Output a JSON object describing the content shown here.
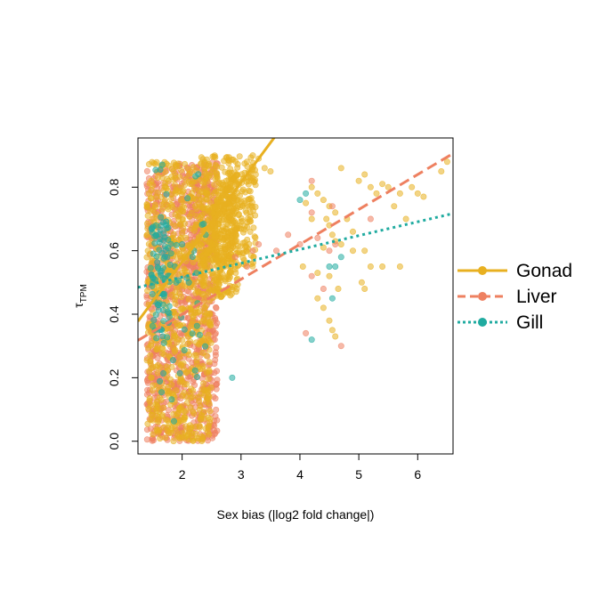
{
  "colors": {
    "gonad": "#E8B020",
    "liver": "#EE8060",
    "gill": "#20ABA0"
  },
  "chart_data": {
    "type": "scatter",
    "xlabel": "Sex bias (|log2 fold change|)",
    "ylabel_main": "τ",
    "ylabel_sub": "TPM",
    "xlim": [
      1.25,
      6.6
    ],
    "ylim": [
      -0.04,
      0.955
    ],
    "x_ticks": [
      2,
      3,
      4,
      5,
      6
    ],
    "y_ticks": [
      0.0,
      0.2,
      0.4,
      0.6,
      0.8
    ],
    "x_tick_labels": [
      "2",
      "3",
      "4",
      "5",
      "6"
    ],
    "y_tick_labels": [
      "0.0",
      "0.2",
      "0.4",
      "0.6",
      "0.8"
    ],
    "grid": false,
    "legend_position": "right",
    "series": [
      {
        "name": "Gonad",
        "color_key": "gonad",
        "line_style": "solid",
        "fit": {
          "intercept": 0.065,
          "slope": 0.25
        },
        "extra_points": [
          [
            3.1,
            0.88
          ],
          [
            3.2,
            0.9
          ],
          [
            3.3,
            0.89
          ],
          [
            3.4,
            0.86
          ],
          [
            3.5,
            0.85
          ],
          [
            3.25,
            0.84
          ],
          [
            4.1,
            0.75
          ],
          [
            4.2,
            0.8
          ],
          [
            4.3,
            0.78
          ],
          [
            4.4,
            0.76
          ],
          [
            4.5,
            0.74
          ],
          [
            4.6,
            0.72
          ],
          [
            4.2,
            0.7
          ],
          [
            4.45,
            0.7
          ],
          [
            4.5,
            0.68
          ],
          [
            4.55,
            0.65
          ],
          [
            4.6,
            0.63
          ],
          [
            4.7,
            0.62
          ],
          [
            4.4,
            0.61
          ],
          [
            4.8,
            0.7
          ],
          [
            4.9,
            0.66
          ],
          [
            5.0,
            0.82
          ],
          [
            5.1,
            0.84
          ],
          [
            5.2,
            0.8
          ],
          [
            5.3,
            0.78
          ],
          [
            5.4,
            0.81
          ],
          [
            5.5,
            0.8
          ],
          [
            5.6,
            0.74
          ],
          [
            5.7,
            0.78
          ],
          [
            5.8,
            0.7
          ],
          [
            5.9,
            0.8
          ],
          [
            6.0,
            0.78
          ],
          [
            6.1,
            0.77
          ],
          [
            6.4,
            0.85
          ],
          [
            6.5,
            0.88
          ],
          [
            4.7,
            0.86
          ],
          [
            4.5,
            0.38
          ],
          [
            4.55,
            0.35
          ],
          [
            4.6,
            0.33
          ],
          [
            4.4,
            0.42
          ],
          [
            4.3,
            0.45
          ],
          [
            4.65,
            0.48
          ],
          [
            4.5,
            0.52
          ],
          [
            4.3,
            0.53
          ],
          [
            4.05,
            0.55
          ],
          [
            4.9,
            0.6
          ],
          [
            5.1,
            0.6
          ],
          [
            5.05,
            0.5
          ],
          [
            5.2,
            0.55
          ],
          [
            5.4,
            0.55
          ],
          [
            5.7,
            0.55
          ],
          [
            5.1,
            0.48
          ]
        ]
      },
      {
        "name": "Liver",
        "color_key": "liver",
        "line_style": "dashed",
        "fit": {
          "intercept": 0.18,
          "slope": 0.11
        },
        "extra_points": [
          [
            3.6,
            0.6
          ],
          [
            3.8,
            0.65
          ],
          [
            4.0,
            0.62
          ],
          [
            4.1,
            0.34
          ],
          [
            4.3,
            0.64
          ],
          [
            4.5,
            0.6
          ],
          [
            4.6,
            0.62
          ],
          [
            4.2,
            0.52
          ],
          [
            4.4,
            0.48
          ],
          [
            4.7,
            0.3
          ],
          [
            4.2,
            0.72
          ],
          [
            4.55,
            0.74
          ],
          [
            5.2,
            0.7
          ],
          [
            4.2,
            0.82
          ],
          [
            3.2,
            0.6
          ],
          [
            3.1,
            0.55
          ],
          [
            3.3,
            0.62
          ],
          [
            2.9,
            0.58
          ]
        ]
      },
      {
        "name": "Gill",
        "color_key": "gill",
        "line_style": "dotted",
        "fit": {
          "intercept": 0.43,
          "slope": 0.0435
        },
        "extra_points": [
          [
            4.2,
            0.32
          ],
          [
            4.5,
            0.55
          ],
          [
            4.6,
            0.55
          ],
          [
            4.7,
            0.58
          ],
          [
            4.55,
            0.45
          ],
          [
            4.1,
            0.78
          ],
          [
            4.0,
            0.76
          ],
          [
            2.85,
            0.2
          ],
          [
            2.2,
            0.6
          ],
          [
            2.4,
            0.65
          ],
          [
            2.0,
            0.62
          ],
          [
            1.9,
            0.5
          ]
        ]
      }
    ]
  }
}
